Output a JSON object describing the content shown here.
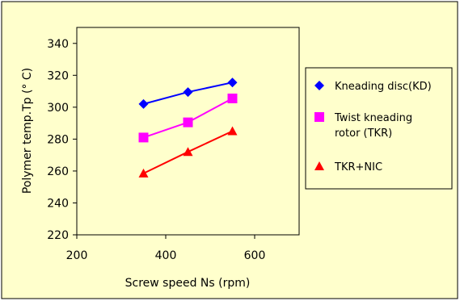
{
  "chart_data": {
    "type": "line",
    "title": "",
    "xlabel": "Screw speed Ns (rpm)",
    "ylabel": "Polymer temp.Tp (° C)",
    "xlim": [
      200,
      700
    ],
    "ylim": [
      220,
      350
    ],
    "xticks": [
      200,
      400,
      600
    ],
    "yticks": [
      220,
      240,
      260,
      280,
      300,
      320,
      340
    ],
    "grid": false,
    "legend_position": "right",
    "series": [
      {
        "name": "Kneading disc(KD)",
        "marker": "diamond",
        "color": "#0000ff",
        "x": [
          350,
          450,
          550
        ],
        "y": [
          302,
          309.5,
          315.5
        ]
      },
      {
        "name_lines": [
          "Twist kneading",
          "rotor (TKR)"
        ],
        "marker": "square",
        "color": "#ff00ff",
        "x": [
          350,
          450,
          550
        ],
        "y": [
          281,
          290.5,
          305.5
        ]
      },
      {
        "name": "TKR+NIC",
        "marker": "triangle",
        "color": "#ff0000",
        "x": [
          350,
          450,
          550
        ],
        "y": [
          258.5,
          272,
          285
        ]
      }
    ],
    "colors": {
      "outer_background": "#ffffcc",
      "plot_background": "#ffffcc",
      "frame": "#000000"
    }
  }
}
